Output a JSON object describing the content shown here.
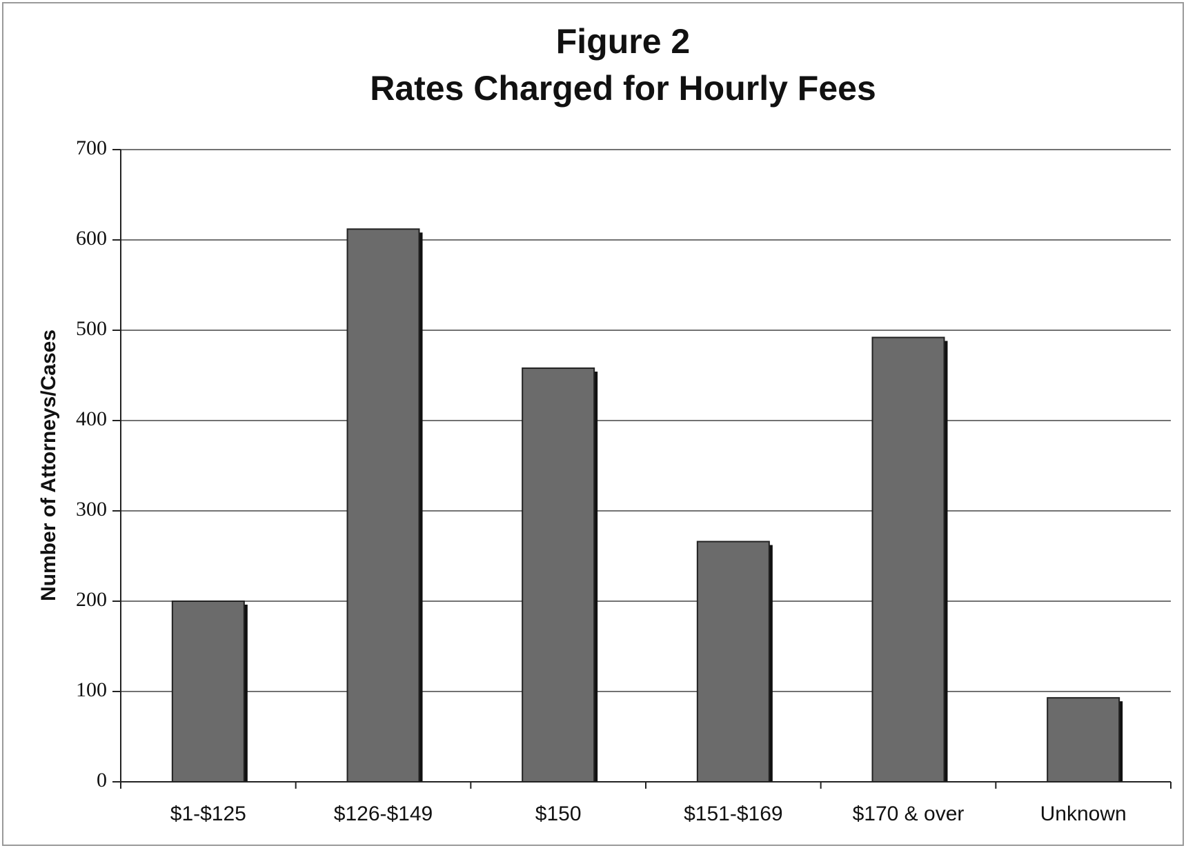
{
  "chart_data": {
    "type": "bar",
    "title": "Figure 2",
    "subtitle": "Rates Charged for Hourly Fees",
    "y_label": "Number of Attorneys/Cases",
    "categories": [
      "$1-$125",
      "$126-$149",
      "$150",
      "$151-$169",
      "$170 & over",
      "Unknown"
    ],
    "values": [
      200,
      612,
      458,
      266,
      492,
      93
    ],
    "color": "#6b6b6b",
    "ylim": [
      0,
      700
    ],
    "yticks": [
      0,
      100,
      200,
      300,
      400,
      500,
      600,
      700
    ],
    "grid": true
  }
}
